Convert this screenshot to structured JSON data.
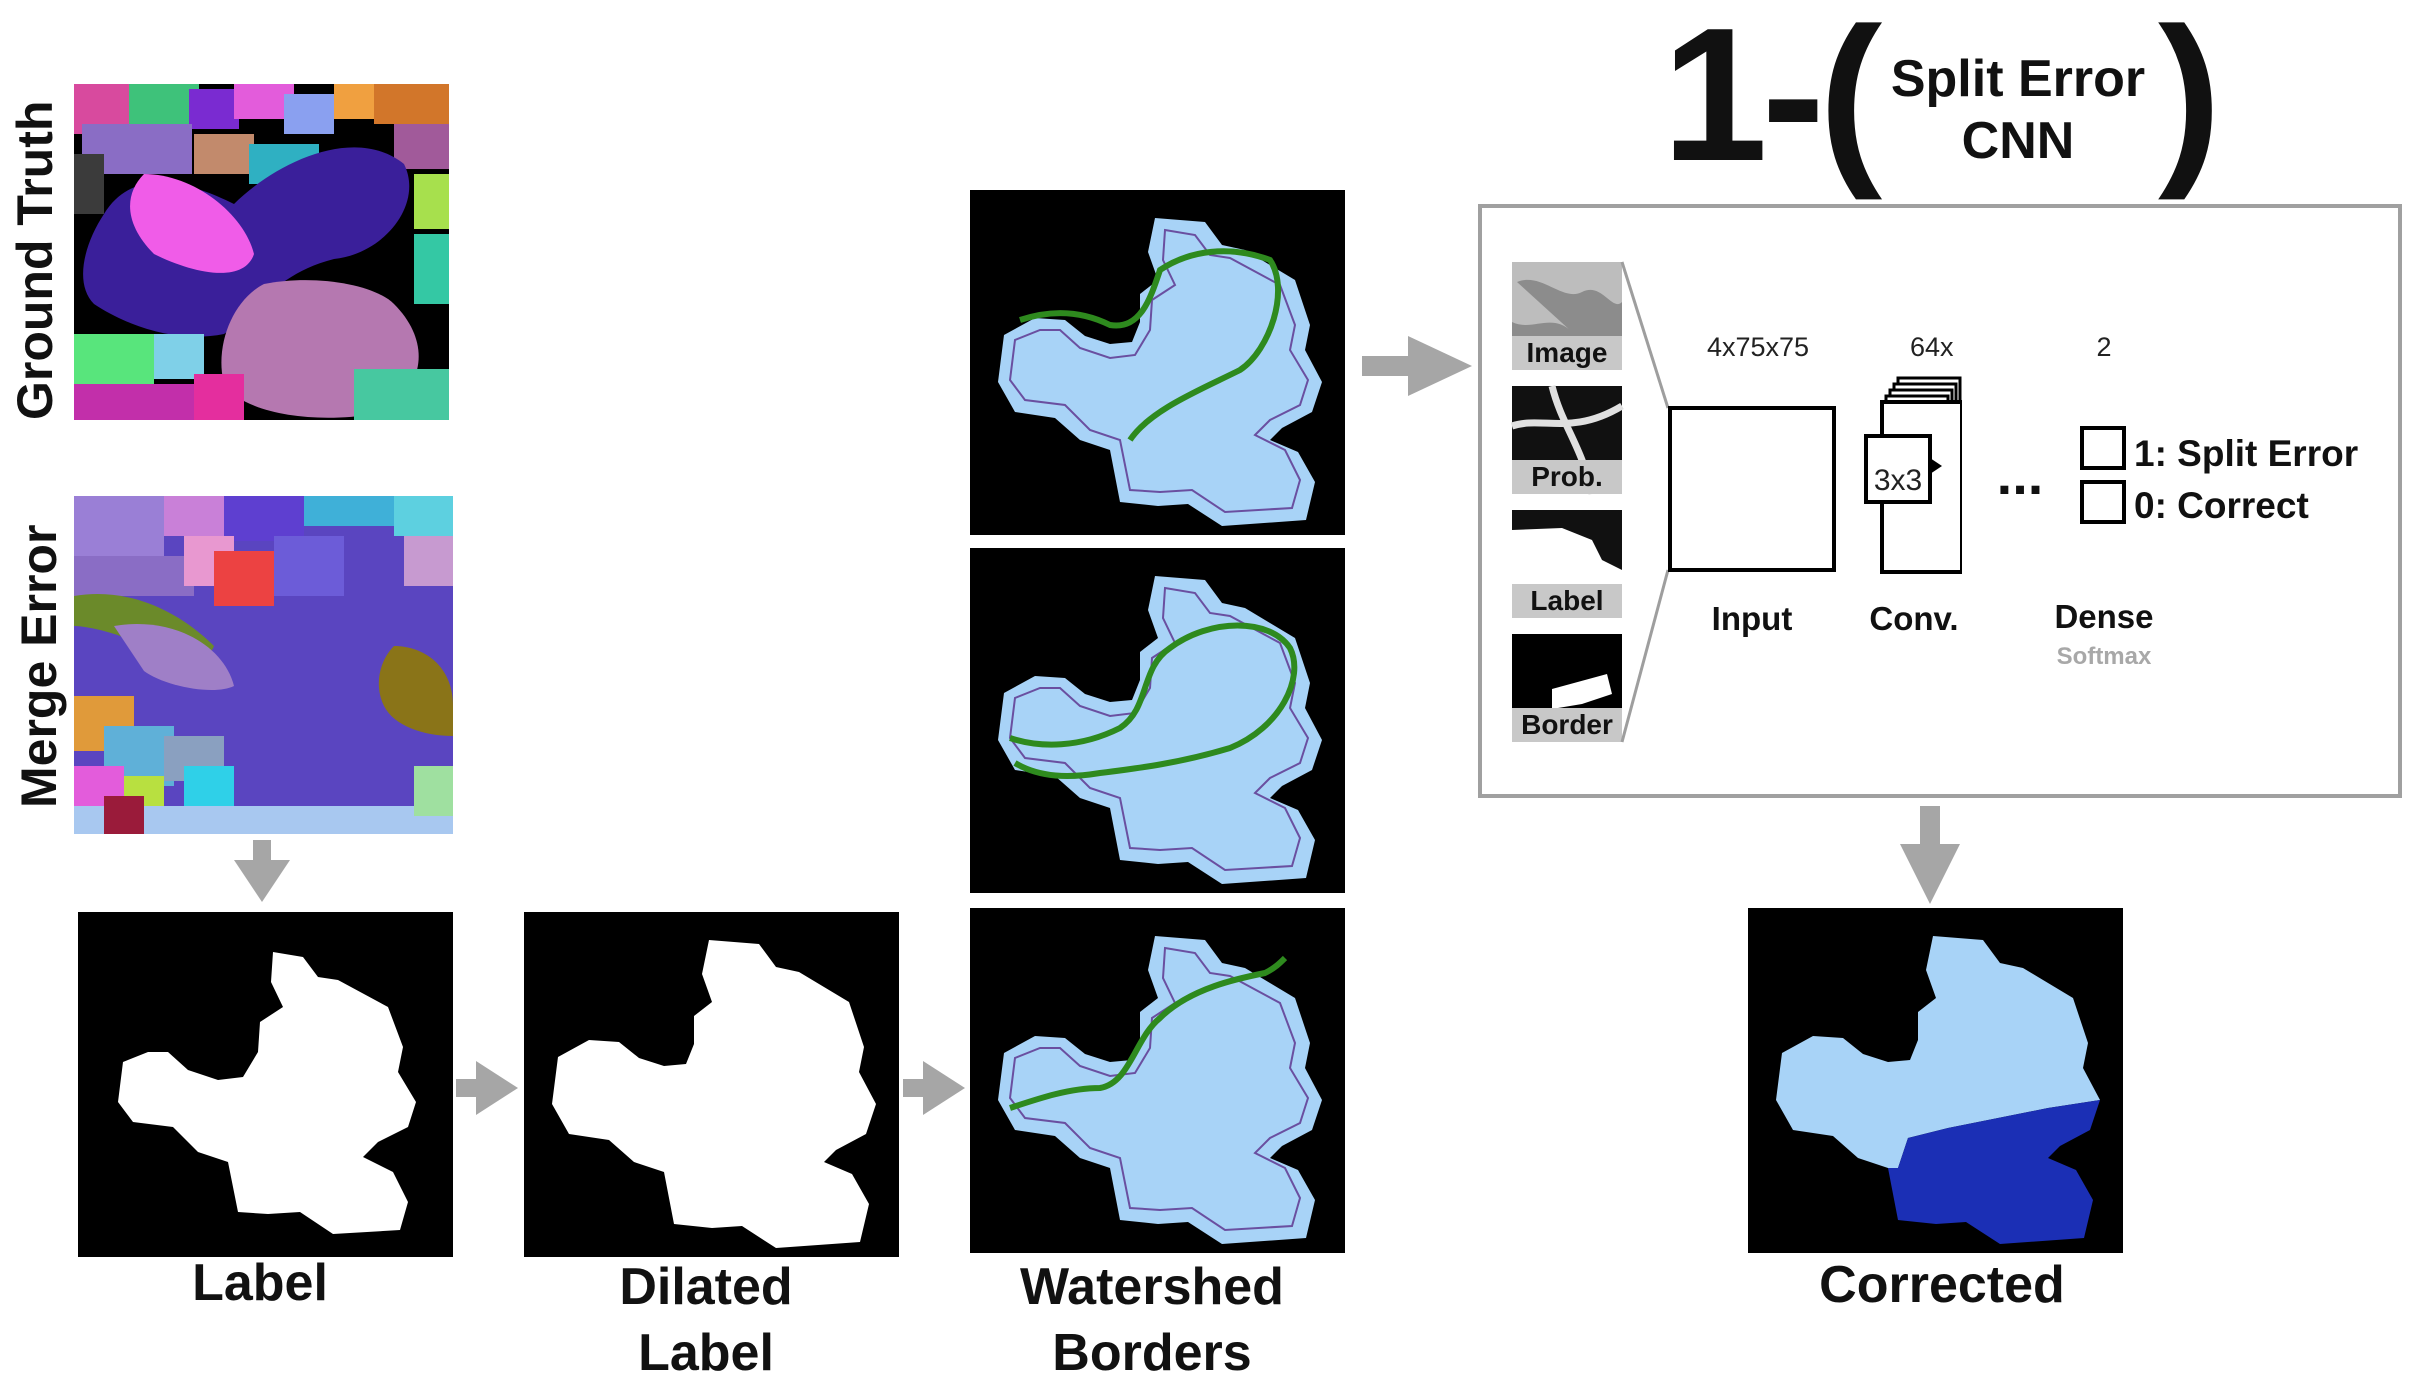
{
  "row_labels": {
    "ground_truth": "Ground Truth",
    "merge_error": "Merge Error"
  },
  "captions": {
    "label": "Label",
    "dilated_line1": "Dilated",
    "dilated_line2": "Label",
    "watershed_line1": "Watershed",
    "watershed_line2": "Borders",
    "corrected": "Corrected"
  },
  "formula": {
    "prefix": "1-(",
    "line1": "Split Error",
    "line2": "CNN",
    "suffix": ")"
  },
  "cnn": {
    "inputs": [
      "Image",
      "Prob.",
      "Label",
      "Border"
    ],
    "input_dims": "4x75x75",
    "conv_dims": "64x",
    "dense_dims": "2",
    "kernel": "3x3",
    "ellipsis": "...",
    "layer_input": "Input",
    "layer_conv": "Conv.",
    "layer_dense": "Dense",
    "layer_softmax": "Softmax",
    "out1": "1: Split Error",
    "out0": "0: Correct"
  },
  "colors": {
    "light_blue": "#a8d3f7",
    "dark_blue": "#1b2fb5",
    "green": "#2e8a1e",
    "border_grey": "#a0a0a0",
    "arrow_grey": "#a6a6a6"
  }
}
